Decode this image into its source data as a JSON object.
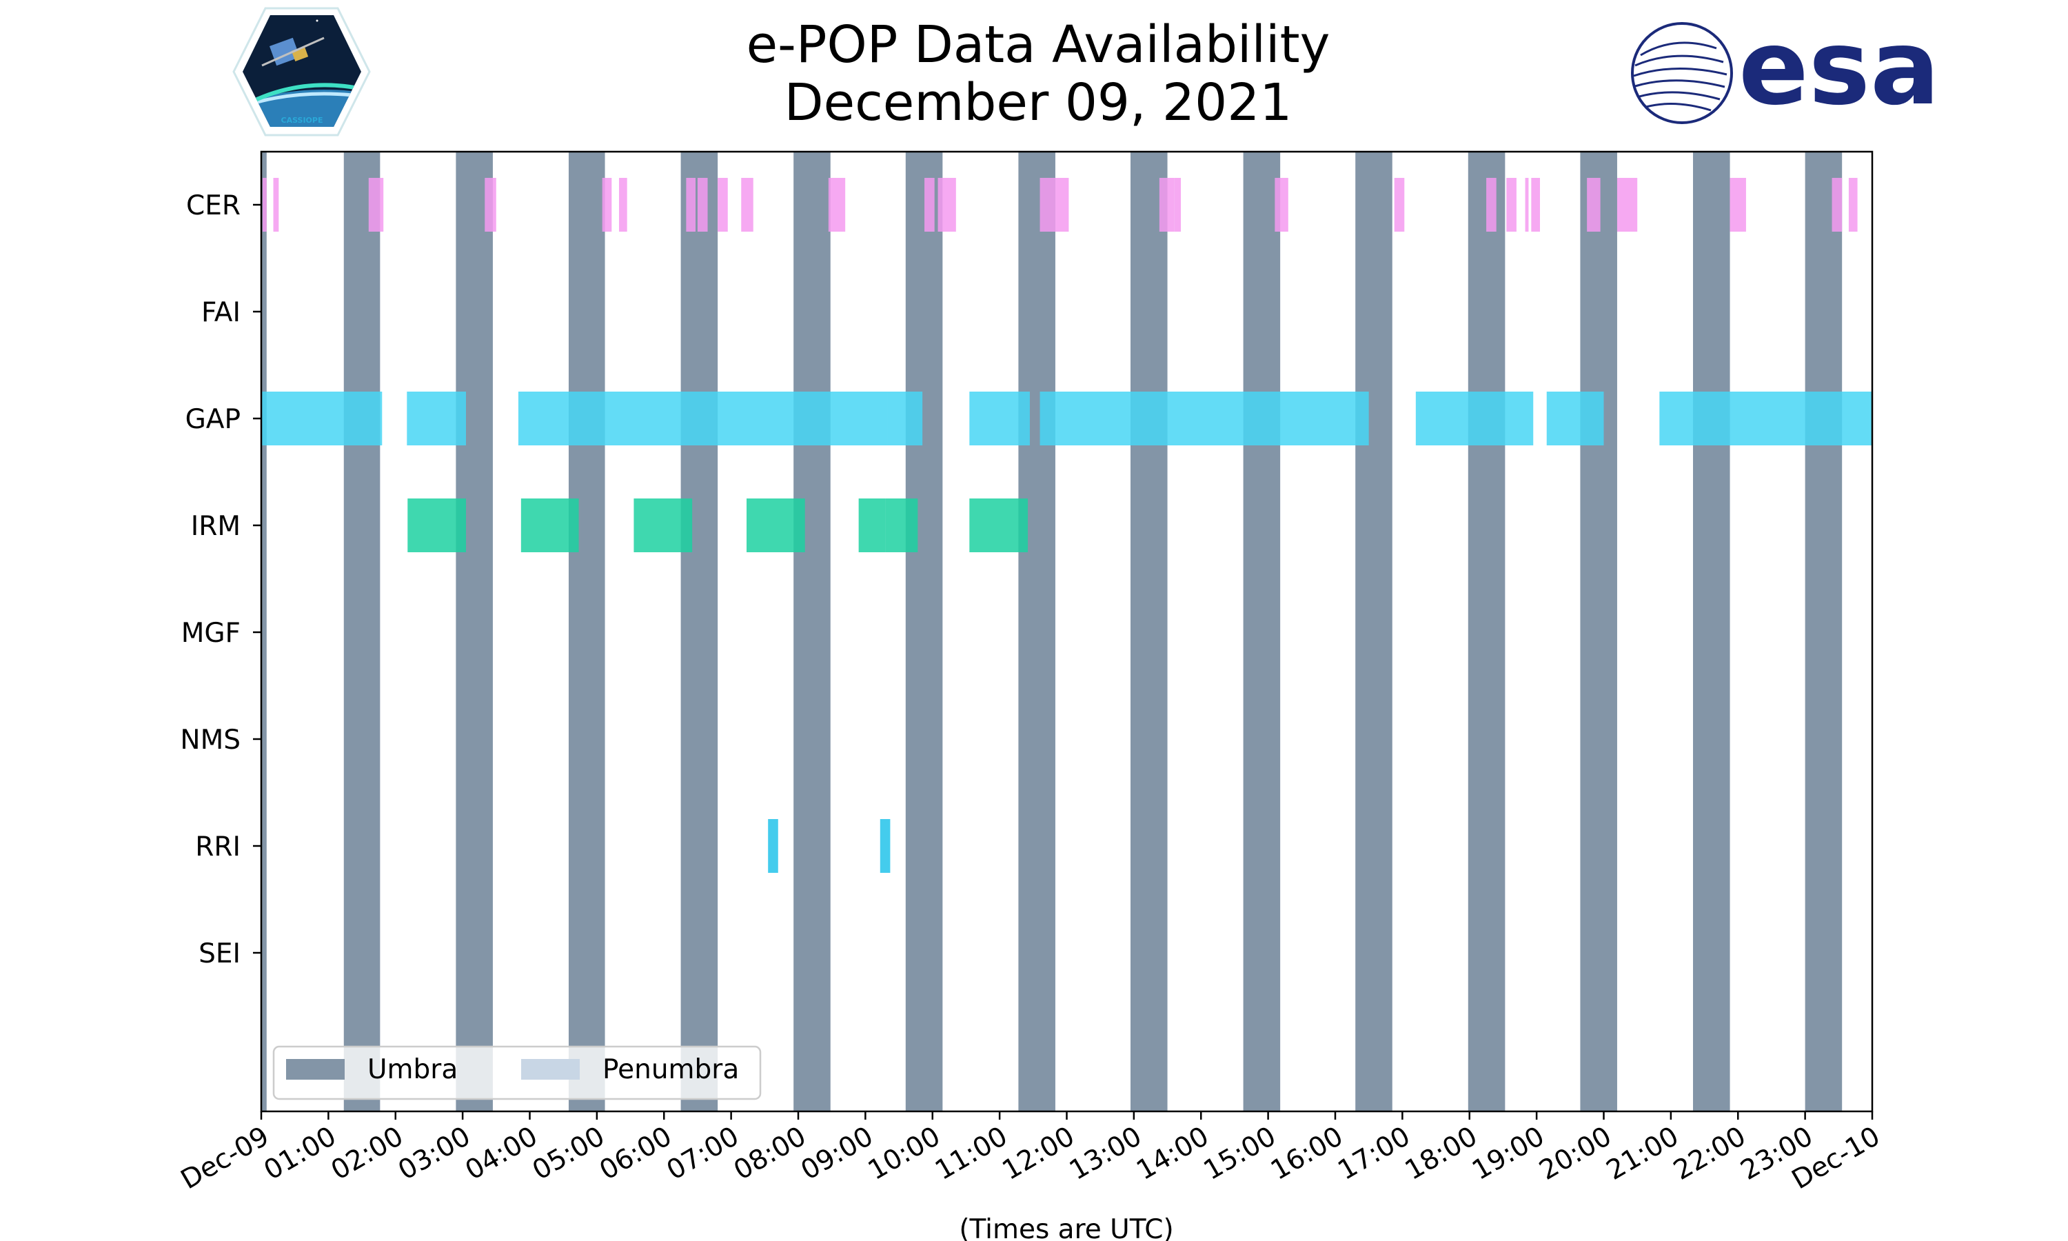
{
  "chart_data": {
    "type": "timeline",
    "title_lines": [
      "e-POP Data Availability",
      "December 09, 2021"
    ],
    "xlabel": "(Times are UTC)",
    "x_range_hours": [
      0,
      24
    ],
    "x_tick_labels": [
      "Dec-09",
      "01:00",
      "02:00",
      "03:00",
      "04:00",
      "05:00",
      "06:00",
      "07:00",
      "08:00",
      "09:00",
      "10:00",
      "11:00",
      "12:00",
      "13:00",
      "14:00",
      "15:00",
      "16:00",
      "17:00",
      "18:00",
      "19:00",
      "20:00",
      "21:00",
      "22:00",
      "23:00",
      "Dec-10"
    ],
    "instruments": [
      "CER",
      "FAI",
      "GAP",
      "IRM",
      "MGF",
      "NMS",
      "RRI",
      "SEI"
    ],
    "colors": {
      "umbra": "#8395a7",
      "penumbra": "#c8d6e5",
      "CER": "#f49af0",
      "GAP": "#48d6f5",
      "IRM": "#1dd1a1",
      "RRI": "#23c3ea"
    },
    "legend": [
      {
        "label": "Umbra",
        "color_key": "umbra"
      },
      {
        "label": "Penumbra",
        "color_key": "penumbra"
      }
    ],
    "umbra_intervals": [
      [
        0.0,
        0.08
      ],
      [
        1.23,
        1.77
      ],
      [
        2.9,
        3.45
      ],
      [
        4.58,
        5.12
      ],
      [
        6.25,
        6.8
      ],
      [
        7.93,
        8.48
      ],
      [
        9.6,
        10.15
      ],
      [
        11.28,
        11.83
      ],
      [
        12.95,
        13.5
      ],
      [
        14.63,
        15.18
      ],
      [
        16.3,
        16.85
      ],
      [
        17.98,
        18.53
      ],
      [
        19.65,
        20.2
      ],
      [
        21.33,
        21.88
      ],
      [
        23.0,
        23.55
      ]
    ],
    "data_intervals": {
      "CER": [
        [
          0.02,
          0.08
        ],
        [
          0.18,
          0.26
        ],
        [
          1.6,
          1.82
        ],
        [
          3.33,
          3.5
        ],
        [
          5.08,
          5.22
        ],
        [
          5.33,
          5.45
        ],
        [
          6.33,
          6.47
        ],
        [
          6.5,
          6.65
        ],
        [
          6.8,
          6.95
        ],
        [
          7.15,
          7.33
        ],
        [
          8.45,
          8.7
        ],
        [
          9.88,
          10.03
        ],
        [
          10.08,
          10.35
        ],
        [
          11.6,
          11.83
        ],
        [
          11.83,
          12.03
        ],
        [
          13.38,
          13.6
        ],
        [
          13.6,
          13.7
        ],
        [
          15.1,
          15.3
        ],
        [
          16.88,
          17.03
        ],
        [
          18.25,
          18.4
        ],
        [
          18.55,
          18.7
        ],
        [
          18.83,
          18.88
        ],
        [
          18.92,
          19.05
        ],
        [
          19.75,
          19.95
        ],
        [
          20.2,
          20.5
        ],
        [
          21.88,
          22.12
        ],
        [
          23.4,
          23.55
        ],
        [
          23.65,
          23.78
        ]
      ],
      "FAI": [],
      "GAP": [
        [
          0.0,
          1.8
        ],
        [
          2.17,
          3.05
        ],
        [
          3.83,
          8.95
        ],
        [
          8.95,
          9.33
        ],
        [
          9.33,
          9.85
        ],
        [
          10.55,
          11.45
        ],
        [
          11.6,
          16.5
        ],
        [
          17.2,
          18.95
        ],
        [
          19.15,
          20.0
        ],
        [
          20.83,
          24.0
        ]
      ],
      "IRM": [
        [
          2.18,
          3.05
        ],
        [
          3.87,
          4.73
        ],
        [
          5.55,
          6.42
        ],
        [
          7.23,
          8.1
        ],
        [
          8.9,
          9.3
        ],
        [
          9.3,
          9.78
        ],
        [
          10.55,
          11.42
        ]
      ],
      "MGF": [],
      "NMS": [],
      "RRI": [
        [
          7.55,
          7.7
        ],
        [
          9.22,
          9.37
        ]
      ],
      "SEI": []
    }
  },
  "logos": {
    "left_badge_text": "CASSIOPE",
    "right_logo_text": "esa"
  }
}
